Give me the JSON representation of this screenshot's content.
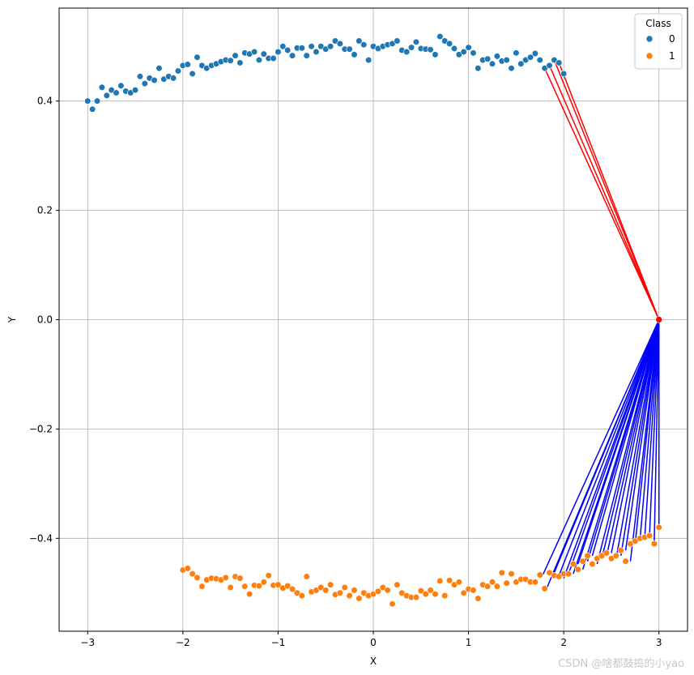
{
  "chart_data": {
    "type": "scatter",
    "title": "",
    "xlabel": "X",
    "ylabel": "Y",
    "xlim": [
      -3.3,
      3.3
    ],
    "ylim": [
      -0.57,
      0.57
    ],
    "xticks": [
      -3,
      -2,
      -1,
      0,
      1,
      2,
      3
    ],
    "yticks": [
      -0.4,
      -0.2,
      0.0,
      0.2,
      0.4
    ],
    "xtick_labels": [
      "−3",
      "−2",
      "−1",
      "0",
      "1",
      "2",
      "3"
    ],
    "ytick_labels": [
      "−0.4",
      "−0.2",
      "0.0",
      "0.2",
      "0.4"
    ],
    "grid": true,
    "legend": {
      "title": "Class",
      "placement": "top-right",
      "entries": [
        {
          "label": "0",
          "color": "#1f77b4"
        },
        {
          "label": "1",
          "color": "#ff7f0e"
        }
      ]
    },
    "series": [
      {
        "name": "0",
        "color": "#1f77b4",
        "x": [
          -3.0,
          -2.95,
          -2.9,
          -2.85,
          -2.8,
          -2.75,
          -2.7,
          -2.65,
          -2.6,
          -2.55,
          -2.5,
          -2.45,
          -2.4,
          -2.35,
          -2.3,
          -2.25,
          -2.2,
          -2.15,
          -2.1,
          -2.05,
          -2.0,
          -1.95,
          -1.9,
          -1.85,
          -1.8,
          -1.75,
          -1.7,
          -1.65,
          -1.6,
          -1.55,
          -1.5,
          -1.45,
          -1.4,
          -1.35,
          -1.3,
          -1.25,
          -1.2,
          -1.15,
          -1.1,
          -1.05,
          -1.0,
          -0.95,
          -0.9,
          -0.85,
          -0.8,
          -0.75,
          -0.7,
          -0.65,
          -0.6,
          -0.55,
          -0.5,
          -0.45,
          -0.4,
          -0.35,
          -0.3,
          -0.25,
          -0.2,
          -0.15,
          -0.1,
          -0.05,
          0.0,
          0.05,
          0.1,
          0.15,
          0.2,
          0.25,
          0.3,
          0.35,
          0.4,
          0.45,
          0.5,
          0.55,
          0.6,
          0.65,
          0.7,
          0.75,
          0.8,
          0.85,
          0.9,
          0.95,
          1.0,
          1.05,
          1.1,
          1.15,
          1.2,
          1.25,
          1.3,
          1.35,
          1.4,
          1.45,
          1.5,
          1.55,
          1.6,
          1.65,
          1.7,
          1.75,
          1.8,
          1.85,
          1.9,
          1.95,
          2.0
        ],
        "y": [
          0.4,
          0.385,
          0.4,
          0.425,
          0.41,
          0.42,
          0.415,
          0.428,
          0.418,
          0.415,
          0.42,
          0.445,
          0.432,
          0.442,
          0.438,
          0.46,
          0.44,
          0.445,
          0.442,
          0.455,
          0.465,
          0.467,
          0.45,
          0.48,
          0.465,
          0.46,
          0.465,
          0.468,
          0.472,
          0.475,
          0.474,
          0.483,
          0.47,
          0.488,
          0.486,
          0.49,
          0.475,
          0.486,
          0.478,
          0.478,
          0.49,
          0.5,
          0.493,
          0.483,
          0.497,
          0.497,
          0.483,
          0.5,
          0.49,
          0.5,
          0.495,
          0.5,
          0.51,
          0.505,
          0.495,
          0.495,
          0.485,
          0.51,
          0.503,
          0.475,
          0.5,
          0.496,
          0.5,
          0.503,
          0.505,
          0.51,
          0.493,
          0.49,
          0.498,
          0.508,
          0.496,
          0.495,
          0.494,
          0.485,
          0.518,
          0.51,
          0.505,
          0.496,
          0.485,
          0.49,
          0.498,
          0.488,
          0.46,
          0.475,
          0.477,
          0.468,
          0.482,
          0.473,
          0.475,
          0.46,
          0.488,
          0.468,
          0.475,
          0.48,
          0.487,
          0.475,
          0.46,
          0.465,
          0.475,
          0.47,
          0.45
        ]
      },
      {
        "name": "1",
        "color": "#ff7f0e",
        "x": [
          -2.0,
          -1.95,
          -1.9,
          -1.85,
          -1.8,
          -1.75,
          -1.7,
          -1.65,
          -1.6,
          -1.55,
          -1.5,
          -1.45,
          -1.4,
          -1.35,
          -1.3,
          -1.25,
          -1.2,
          -1.15,
          -1.1,
          -1.05,
          -1.0,
          -0.95,
          -0.9,
          -0.85,
          -0.8,
          -0.75,
          -0.7,
          -0.65,
          -0.6,
          -0.55,
          -0.5,
          -0.45,
          -0.4,
          -0.35,
          -0.3,
          -0.25,
          -0.2,
          -0.15,
          -0.1,
          -0.05,
          0.0,
          0.05,
          0.1,
          0.15,
          0.2,
          0.25,
          0.3,
          0.35,
          0.4,
          0.45,
          0.5,
          0.55,
          0.6,
          0.65,
          0.7,
          0.75,
          0.8,
          0.85,
          0.9,
          0.95,
          1.0,
          1.05,
          1.1,
          1.15,
          1.2,
          1.25,
          1.3,
          1.35,
          1.4,
          1.45,
          1.5,
          1.55,
          1.6,
          1.65,
          1.7,
          1.75,
          1.8,
          1.85,
          1.9,
          1.95,
          2.0,
          2.05,
          2.1,
          2.15,
          2.2,
          2.25,
          2.3,
          2.35,
          2.4,
          2.45,
          2.5,
          2.55,
          2.6,
          2.65,
          2.7,
          2.75,
          2.8,
          2.85,
          2.9,
          2.95,
          3.0
        ],
        "y": [
          -0.458,
          -0.455,
          -0.465,
          -0.472,
          -0.488,
          -0.476,
          -0.473,
          -0.474,
          -0.476,
          -0.472,
          -0.49,
          -0.47,
          -0.473,
          -0.488,
          -0.502,
          -0.486,
          -0.487,
          -0.48,
          -0.468,
          -0.486,
          -0.485,
          -0.491,
          -0.487,
          -0.493,
          -0.5,
          -0.505,
          -0.47,
          -0.498,
          -0.495,
          -0.49,
          -0.495,
          -0.485,
          -0.503,
          -0.5,
          -0.49,
          -0.505,
          -0.495,
          -0.51,
          -0.5,
          -0.505,
          -0.502,
          -0.497,
          -0.49,
          -0.495,
          -0.52,
          -0.485,
          -0.5,
          -0.505,
          -0.508,
          -0.508,
          -0.496,
          -0.502,
          -0.495,
          -0.502,
          -0.478,
          -0.505,
          -0.477,
          -0.485,
          -0.48,
          -0.5,
          -0.493,
          -0.495,
          -0.51,
          -0.485,
          -0.488,
          -0.48,
          -0.488,
          -0.463,
          -0.482,
          -0.465,
          -0.48,
          -0.475,
          -0.475,
          -0.48,
          -0.48,
          -0.467,
          -0.492,
          -0.463,
          -0.468,
          -0.47,
          -0.465,
          -0.465,
          -0.447,
          -0.457,
          -0.442,
          -0.432,
          -0.447,
          -0.437,
          -0.432,
          -0.427,
          -0.437,
          -0.432,
          -0.422,
          -0.442,
          -0.41,
          -0.405,
          -0.4,
          -0.398,
          -0.395,
          -0.41,
          -0.38
        ]
      }
    ],
    "lines": {
      "origin": [
        3.0,
        0.0
      ],
      "groups": [
        {
          "color": "#ff0000",
          "series": "0",
          "targets": [
            [
              1.8,
              0.46
            ],
            [
              1.85,
              0.465
            ],
            [
              1.9,
              0.475
            ],
            [
              1.95,
              0.47
            ]
          ]
        },
        {
          "color": "#0000ff",
          "series": "1",
          "targets": [
            [
              1.78,
              -0.467
            ],
            [
              1.82,
              -0.492
            ],
            [
              1.9,
              -0.463
            ],
            [
              1.95,
              -0.468
            ],
            [
              2.0,
              -0.473
            ],
            [
              2.05,
              -0.465
            ],
            [
              2.1,
              -0.465
            ],
            [
              2.15,
              -0.447
            ],
            [
              2.2,
              -0.457
            ],
            [
              2.25,
              -0.442
            ],
            [
              2.3,
              -0.432
            ],
            [
              2.35,
              -0.447
            ],
            [
              2.4,
              -0.437
            ],
            [
              2.45,
              -0.432
            ],
            [
              2.5,
              -0.427
            ],
            [
              2.55,
              -0.437
            ],
            [
              2.6,
              -0.432
            ],
            [
              2.65,
              -0.422
            ],
            [
              2.7,
              -0.442
            ],
            [
              2.75,
              -0.41
            ],
            [
              2.8,
              -0.405
            ],
            [
              2.85,
              -0.4
            ],
            [
              2.9,
              -0.398
            ],
            [
              2.95,
              -0.41
            ],
            [
              3.0,
              -0.38
            ]
          ]
        }
      ]
    },
    "highlight_point": [
      3.0,
      0.0
    ]
  },
  "watermark": "CSDN @啥都鼓捣的小yao"
}
